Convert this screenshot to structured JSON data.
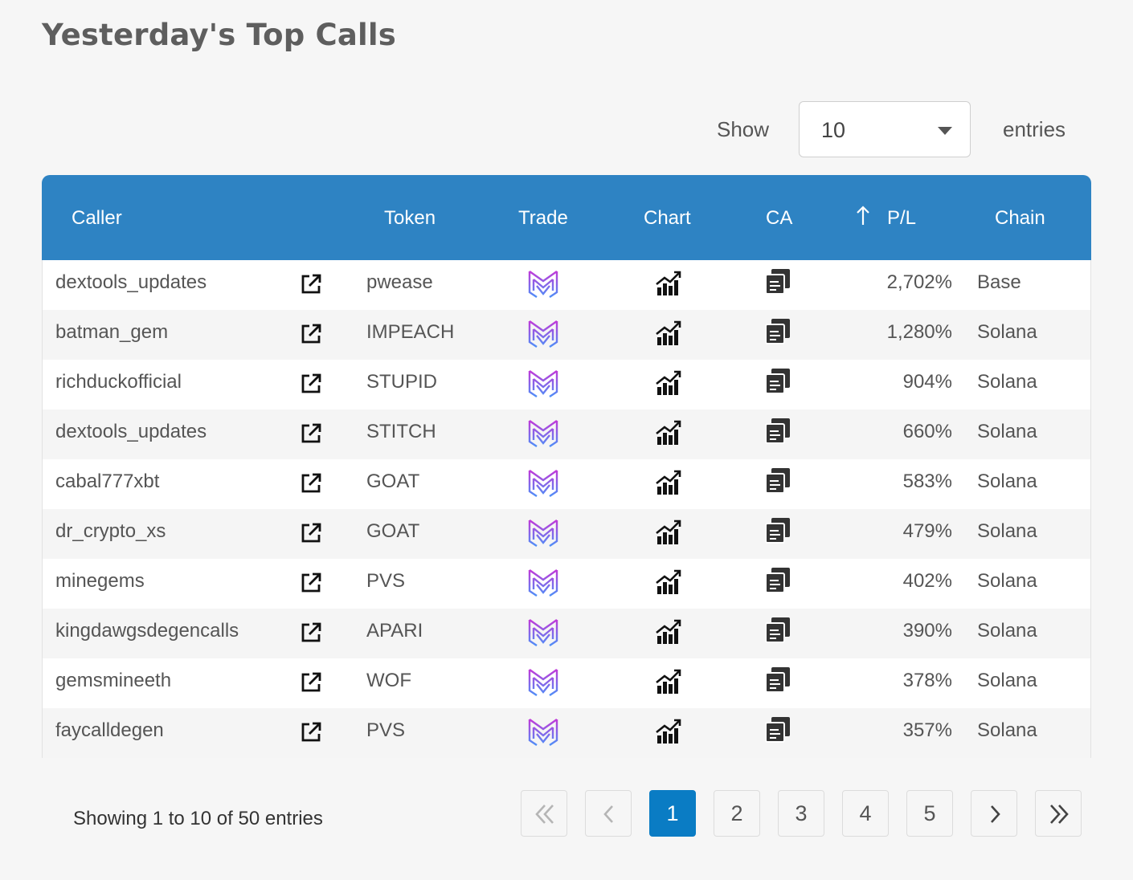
{
  "page": {
    "title": "Yesterday's Top Calls"
  },
  "length_control": {
    "show_label": "Show",
    "selected": "10",
    "entries_label": "entries"
  },
  "columns": [
    "Caller",
    "Token",
    "Trade",
    "Chart",
    "CA",
    "P/L",
    "Chain"
  ],
  "rows": [
    {
      "caller": "dextools_updates",
      "token": "pwease",
      "pl": "2,702%",
      "chain": "Base"
    },
    {
      "caller": "batman_gem",
      "token": "IMPEACH",
      "pl": "1,280%",
      "chain": "Solana"
    },
    {
      "caller": "richduckofficial",
      "token": "STUPID",
      "pl": "904%",
      "chain": "Solana"
    },
    {
      "caller": "dextools_updates",
      "token": "STITCH",
      "pl": "660%",
      "chain": "Solana"
    },
    {
      "caller": "cabal777xbt",
      "token": "GOAT",
      "pl": "583%",
      "chain": "Solana"
    },
    {
      "caller": "dr_crypto_xs",
      "token": "GOAT",
      "pl": "479%",
      "chain": "Solana"
    },
    {
      "caller": "minegems",
      "token": "PVS",
      "pl": "402%",
      "chain": "Solana"
    },
    {
      "caller": "kingdawgsdegencalls",
      "token": "APARI",
      "pl": "390%",
      "chain": "Solana"
    },
    {
      "caller": "gemsmineeth",
      "token": "WOF",
      "pl": "378%",
      "chain": "Solana"
    },
    {
      "caller": "faycalldegen",
      "token": "PVS",
      "pl": "357%",
      "chain": "Solana"
    }
  ],
  "footer": {
    "info": "Showing 1 to 10 of 50 entries"
  },
  "pagination": {
    "pages": [
      "1",
      "2",
      "3",
      "4",
      "5"
    ],
    "active": "1"
  },
  "colors": {
    "header_bg": "#2e83c3",
    "active_page": "#0a7cc4"
  },
  "icons": {
    "external": "external-link-icon",
    "trade": "trade-logo-icon",
    "chart": "chart-icon",
    "ca": "copy-icon"
  }
}
